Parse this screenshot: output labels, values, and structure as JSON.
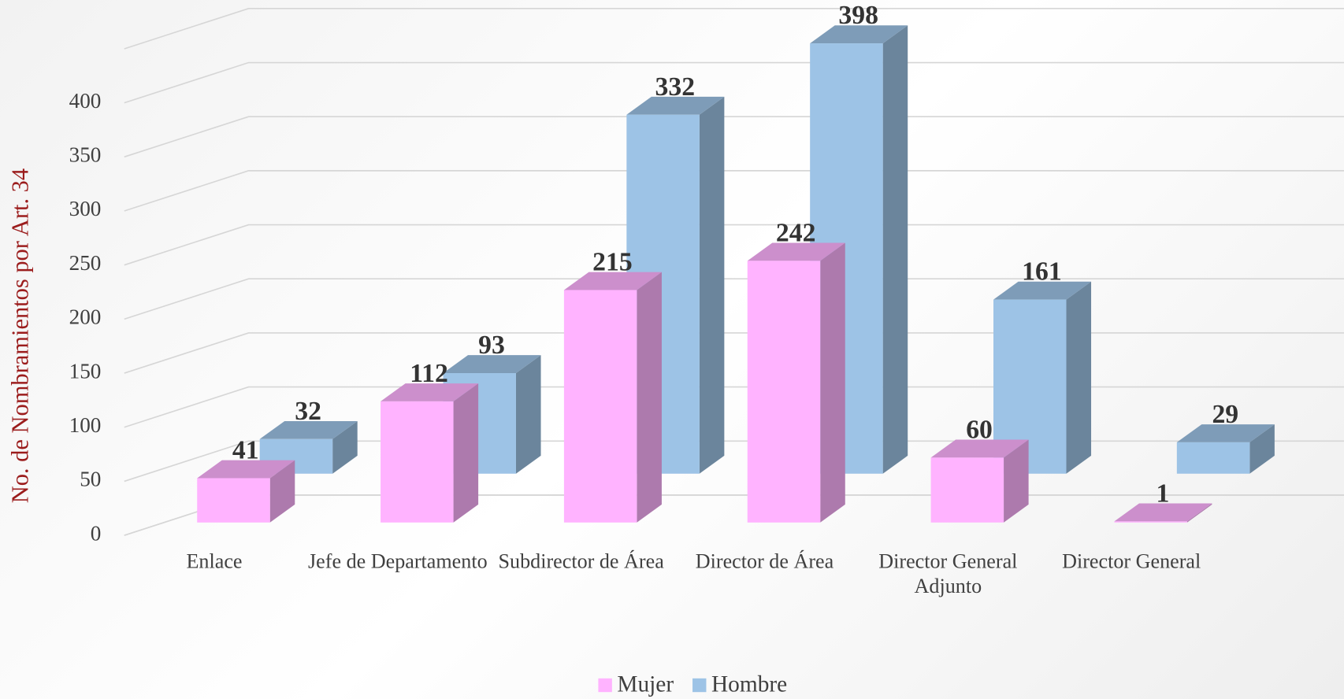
{
  "chart_data": {
    "type": "bar3d",
    "y_axis_label": "No. de Nombramientos por Art. 34",
    "categories": [
      "Enlace",
      "Jefe de Departamento",
      "Subdirector de Área",
      "Director de Área",
      "Director General Adjunto",
      "Director General"
    ],
    "series": [
      {
        "name": "Mujer",
        "color": "#ffb3ff",
        "values": [
          41,
          112,
          215,
          242,
          60,
          1
        ]
      },
      {
        "name": "Hombre",
        "color": "#9dc3e6",
        "values": [
          32,
          93,
          332,
          398,
          161,
          29
        ]
      }
    ],
    "ylim": [
      0,
      450
    ],
    "yticks": [
      0,
      50,
      100,
      150,
      200,
      250,
      300,
      350,
      400
    ],
    "grid": true,
    "legend": "bottom"
  }
}
